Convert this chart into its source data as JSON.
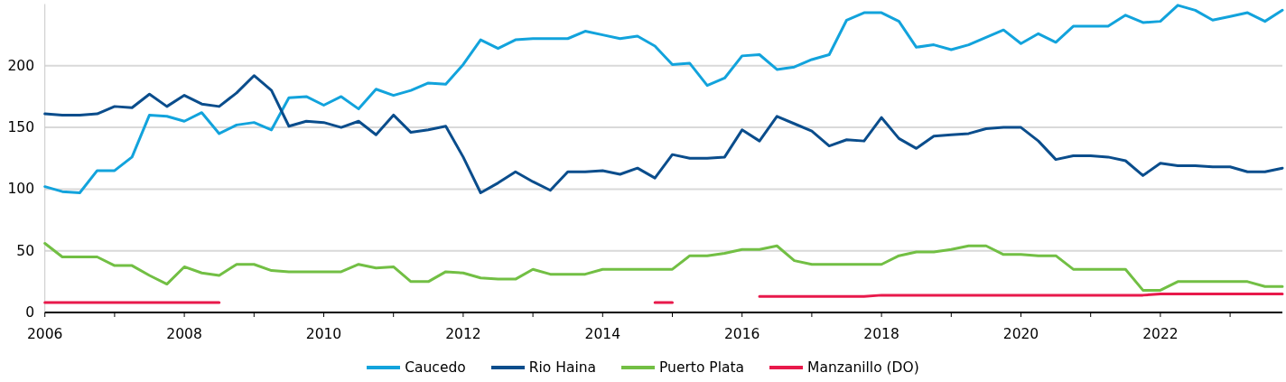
{
  "chart_data": {
    "type": "line",
    "x": [
      2006,
      2006.25,
      2006.5,
      2006.75,
      2007,
      2007.25,
      2007.5,
      2007.75,
      2008,
      2008.25,
      2008.5,
      2008.75,
      2009,
      2009.25,
      2009.5,
      2009.75,
      2010,
      2010.25,
      2010.5,
      2010.75,
      2011,
      2011.25,
      2011.5,
      2011.75,
      2012,
      2012.25,
      2012.5,
      2012.75,
      2013,
      2013.25,
      2013.5,
      2013.75,
      2014,
      2014.25,
      2014.5,
      2014.75,
      2015,
      2015.25,
      2015.5,
      2015.75,
      2016,
      2016.25,
      2016.5,
      2016.75,
      2017,
      2017.25,
      2017.5,
      2017.75,
      2018,
      2018.25,
      2018.5,
      2018.75,
      2019,
      2019.25,
      2019.5,
      2019.75,
      2020,
      2020.25,
      2020.5,
      2020.75,
      2021,
      2021.25,
      2021.5,
      2021.75,
      2022,
      2022.25,
      2022.5,
      2022.75,
      2023,
      2023.25,
      2023.5,
      2023.75
    ],
    "series": [
      {
        "name": "Caucedo",
        "color": "#12a3dc",
        "values": [
          102,
          98,
          97,
          115,
          115,
          126,
          160,
          159,
          155,
          162,
          145,
          152,
          154,
          148,
          174,
          175,
          168,
          175,
          165,
          181,
          176,
          180,
          186,
          185,
          201,
          221,
          214,
          221,
          222,
          222,
          222,
          228,
          225,
          222,
          224,
          216,
          201,
          202,
          184,
          190,
          208,
          209,
          197,
          199,
          205,
          209,
          237,
          243,
          243,
          236,
          215,
          217,
          213,
          217,
          223,
          229,
          218,
          226,
          219,
          232,
          232,
          232,
          241,
          235,
          236,
          249,
          245,
          237,
          240,
          243,
          236,
          245
        ]
      },
      {
        "name": "Rio Haina",
        "color": "#0a4d8c",
        "values": [
          161,
          160,
          160,
          161,
          167,
          166,
          177,
          167,
          176,
          169,
          167,
          178,
          192,
          180,
          151,
          155,
          154,
          150,
          155,
          144,
          160,
          146,
          148,
          151,
          126,
          97,
          105,
          114,
          106,
          99,
          114,
          114,
          115,
          112,
          117,
          109,
          128,
          125,
          125,
          126,
          148,
          139,
          159,
          153,
          147,
          135,
          140,
          139,
          158,
          141,
          133,
          143,
          144,
          145,
          149,
          150,
          150,
          139,
          124,
          127,
          127,
          126,
          123,
          111,
          121,
          119,
          119,
          118,
          118,
          114,
          114,
          117
        ]
      },
      {
        "name": "Puerto Plata",
        "color": "#72bf44",
        "values": [
          56,
          45,
          45,
          45,
          38,
          38,
          30,
          23,
          37,
          32,
          30,
          39,
          39,
          34,
          33,
          33,
          33,
          33,
          39,
          36,
          37,
          25,
          25,
          33,
          32,
          28,
          27,
          27,
          35,
          31,
          31,
          31,
          35,
          35,
          35,
          35,
          35,
          46,
          46,
          48,
          51,
          51,
          54,
          42,
          39,
          39,
          39,
          39,
          39,
          46,
          49,
          49,
          51,
          54,
          54,
          47,
          47,
          46,
          46,
          35,
          35,
          35,
          35,
          18,
          18,
          25,
          25,
          25,
          25,
          25,
          21,
          21
        ]
      },
      {
        "name": "Manzanillo (DO)",
        "color": "#e8194b",
        "values": [
          8,
          8,
          8,
          8,
          8,
          8,
          8,
          8,
          8,
          8,
          8,
          null,
          null,
          null,
          null,
          null,
          null,
          null,
          null,
          null,
          null,
          null,
          null,
          null,
          null,
          null,
          null,
          null,
          null,
          null,
          null,
          null,
          null,
          null,
          null,
          8,
          8,
          null,
          null,
          null,
          null,
          13,
          13,
          13,
          13,
          13,
          13,
          13,
          14,
          14,
          14,
          14,
          14,
          14,
          14,
          14,
          14,
          14,
          14,
          14,
          14,
          14,
          14,
          14,
          15,
          15,
          15,
          15,
          15,
          15,
          15,
          15
        ]
      }
    ],
    "xlim": [
      2006,
      2023.75
    ],
    "xticks": [
      2006,
      {
        "value": 2007,
        "label": null
      },
      2008,
      {
        "value": 2009,
        "label": null
      },
      2010,
      {
        "value": 2011,
        "label": null
      },
      2012,
      {
        "value": 2013,
        "label": null
      },
      2014,
      {
        "value": 2015,
        "label": null
      },
      2016,
      {
        "value": 2017,
        "label": null
      },
      2018,
      {
        "value": 2019,
        "label": null
      },
      2020,
      {
        "value": 2021,
        "label": null
      },
      2022,
      {
        "value": 2023,
        "label": null
      }
    ],
    "ylim": [
      0,
      250
    ],
    "yticks": [
      0,
      50,
      100,
      150,
      200
    ],
    "grid": "y",
    "legend": "bottom"
  }
}
